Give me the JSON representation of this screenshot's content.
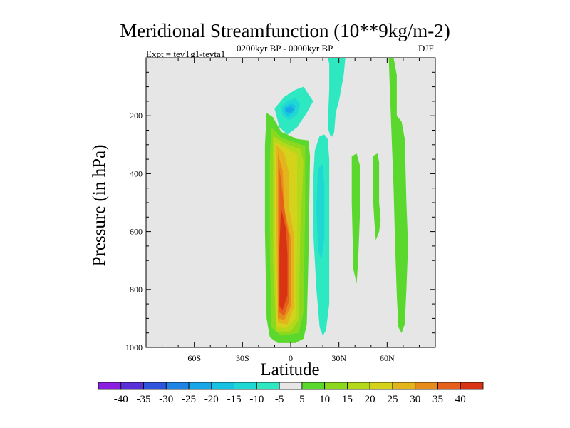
{
  "chart_data": {
    "type": "heatmap",
    "title": "Meridional Streamfunction (10**9kg/m-2)",
    "subtitle_left": "Expt = tevTg1-tevta1",
    "subtitle_center": "0200kyr BP - 0000kyr BP",
    "subtitle_right": "DJF",
    "xlabel": "Latitude",
    "ylabel": "Pressure (in hPa)",
    "xlim": [
      -90,
      90
    ],
    "ylim": [
      1000,
      0
    ],
    "x_ticks": [
      {
        "value": -60,
        "label": "60S"
      },
      {
        "value": -30,
        "label": "30S"
      },
      {
        "value": 0,
        "label": "0"
      },
      {
        "value": 30,
        "label": "30N"
      },
      {
        "value": 60,
        "label": "60N"
      }
    ],
    "y_ticks": [
      {
        "value": 200,
        "label": "200"
      },
      {
        "value": 400,
        "label": "400"
      },
      {
        "value": 600,
        "label": "600"
      },
      {
        "value": 800,
        "label": "800"
      },
      {
        "value": 1000,
        "label": "1000"
      }
    ],
    "contour_levels": [
      -40,
      -35,
      -30,
      -25,
      -20,
      -15,
      -10,
      -5,
      5,
      10,
      15,
      20,
      25,
      30,
      35,
      40
    ],
    "colorbar_labels": [
      "-40",
      "-35",
      "-30",
      "-25",
      "-20",
      "-15",
      "-10",
      "-5",
      "5",
      "10",
      "15",
      "20",
      "25",
      "30",
      "35",
      "40"
    ],
    "colorbar_colors": [
      "#8a1fe0",
      "#5a2fd8",
      "#2f55dc",
      "#1f84e6",
      "#17a6e8",
      "#18c2e2",
      "#1fd8d4",
      "#2ee8c2",
      "#e6e6e6",
      "#5ad82e",
      "#8cd81f",
      "#b4d81a",
      "#d4d21a",
      "#e3b41c",
      "#e68c1c",
      "#e6601c",
      "#d83414"
    ],
    "regions": [
      {
        "name": "tropical-positive-cell",
        "value": "positive",
        "lat_range": [
          -12,
          12
        ],
        "p_range": [
          190,
          985
        ],
        "peak": 40,
        "peak_lat": -3,
        "peak_p": 700
      },
      {
        "name": "upper-negative-cell",
        "value": "negative",
        "lat_range": [
          -10,
          14
        ],
        "p_range": [
          100,
          260
        ],
        "peak": -30,
        "peak_lat": 0,
        "peak_p": 180
      },
      {
        "name": "subtropical-negative-cell",
        "value": "negative",
        "lat_range": [
          12,
          25
        ],
        "p_range": [
          270,
          960
        ],
        "peak": -10,
        "peak_lat": 18,
        "peak_p": 550
      },
      {
        "name": "upper-negative-strip",
        "value": "negative",
        "lat_range": [
          22,
          34
        ],
        "p_range": [
          0,
          270
        ],
        "peak": -5
      },
      {
        "name": "midlat-positive-strip",
        "value": "positive",
        "lat_range": [
          38,
          46
        ],
        "p_range": [
          340,
          780
        ],
        "peak": 5
      },
      {
        "name": "highlat-positive-strip",
        "value": "positive",
        "lat_range": [
          60,
          74
        ],
        "p_range": [
          0,
          950
        ],
        "peak": 5
      }
    ]
  }
}
